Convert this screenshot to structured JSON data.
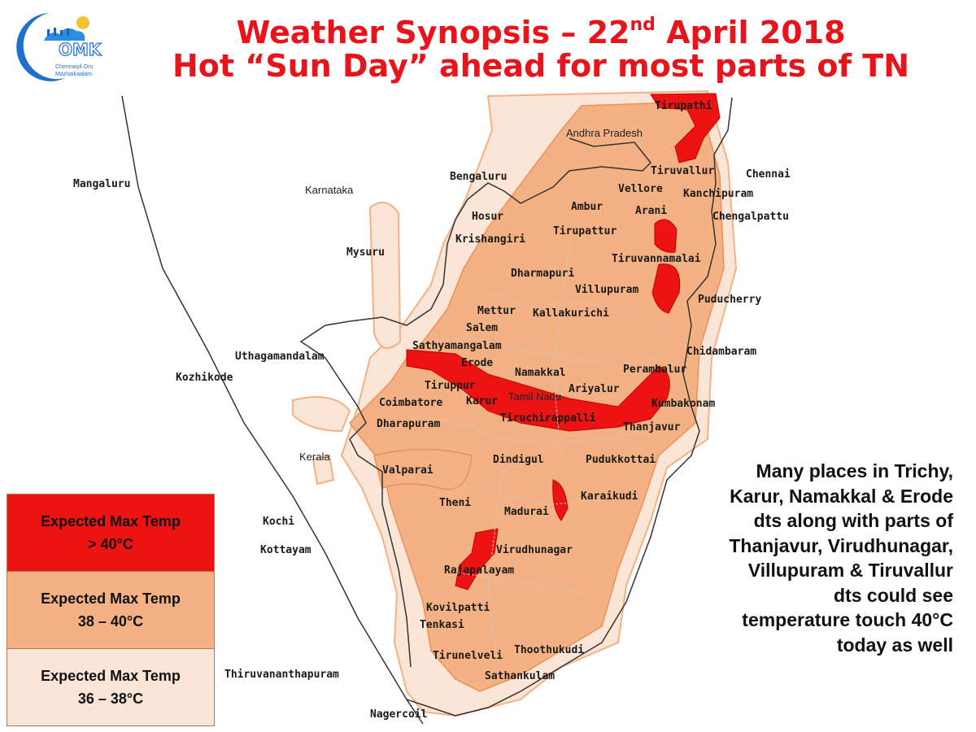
{
  "logo": {
    "text": "OMK",
    "tagline_line1": "Chennaiyil Oru",
    "tagline_line2": "Mazhaikaalam"
  },
  "title": {
    "line1_pre": "Weather Synopsis – 22",
    "line1_sup": "nd",
    "line1_post": " April 2018",
    "line2": "Hot “Sun Day” ahead for most parts of TN"
  },
  "map": {
    "regions": {
      "andhra": "Andhra Pradesh",
      "karnataka": "Karnataka",
      "kerala": "Kerala",
      "tamilnadu": "Tamil Nadu"
    },
    "cities": {
      "tirupathi": "Tirupathi",
      "chennai": "Chennai",
      "tiruvallur": "Tiruvallur",
      "kanchipuram": "Kanchipuram",
      "vellore": "Vellore",
      "chengalpattu": "Chengalpattu",
      "ambur": "Ambur",
      "arani": "Arani",
      "bengaluru": "Bengaluru",
      "hosur": "Hosur",
      "krishangiri": "Krishangiri",
      "tirupattur": "Tirupattur",
      "mangaluru": "Mangaluru",
      "mysuru": "Mysuru",
      "tiruvannamalai": "Tiruvannamalai",
      "dharmapuri": "Dharmapuri",
      "villupuram": "Villupuram",
      "puducherry": "Puducherry",
      "mettur": "Mettur",
      "kallakurichi": "Kallakurichi",
      "salem": "Salem",
      "sathyamangalam": "Sathyamangalam",
      "chidambaram": "Chidambaram",
      "ooty": "Uthagamandalam",
      "erode": "Erode",
      "kozhikode": "Kozhikode",
      "namakkal": "Namakkal",
      "perambalur": "Perambalur",
      "tiruppur": "Tiruppur",
      "ariyalur": "Ariyalur",
      "coimbatore": "Coimbatore",
      "karur": "Karur",
      "kumbakonam": "Kumbakonam",
      "tiruchirappalli": "Tiruchirappalli",
      "thanjavur": "Thanjavur",
      "dharapuram": "Dharapuram",
      "valparai": "Valparai",
      "dindigul": "Dindigul",
      "pudukkottai": "Pudukkottai",
      "karaikudi": "Karaikudi",
      "theni": "Theni",
      "kochi": "Kochi",
      "madurai": "Madurai",
      "kottayam": "Kottayam",
      "virudhunagar": "Virudhunagar",
      "rajapalayam": "Rajapalayam",
      "kovilpatti": "Kovilpatti",
      "tenkasi": "Tenkasi",
      "thoothukudi": "Thoothukudi",
      "tirunelveli": "Tirunelveli",
      "thiruvananthapuram": "Thiruvananthapuram",
      "sathankulam": "Sathankulam",
      "nagercoil": "Nagercoil"
    }
  },
  "legend": {
    "items": [
      {
        "line1": "Expected Max Temp",
        "line2": "> 40°C",
        "color": "#ee1313"
      },
      {
        "line1": "Expected Max Temp",
        "line2": "38 – 40°C",
        "color": "#f4b183"
      },
      {
        "line1": "Expected Max Temp",
        "line2": "36 – 38°C",
        "color": "#fbe5d6"
      }
    ]
  },
  "note": {
    "lines": [
      "Many places in Trichy,",
      "Karur, Namakkal & Erode",
      "dts along with parts of",
      "Thanjavur, Virudhunagar,",
      "Villupuram & Tiruvallur",
      "dts could see",
      "temperature touch 40°C",
      "today as well"
    ]
  }
}
